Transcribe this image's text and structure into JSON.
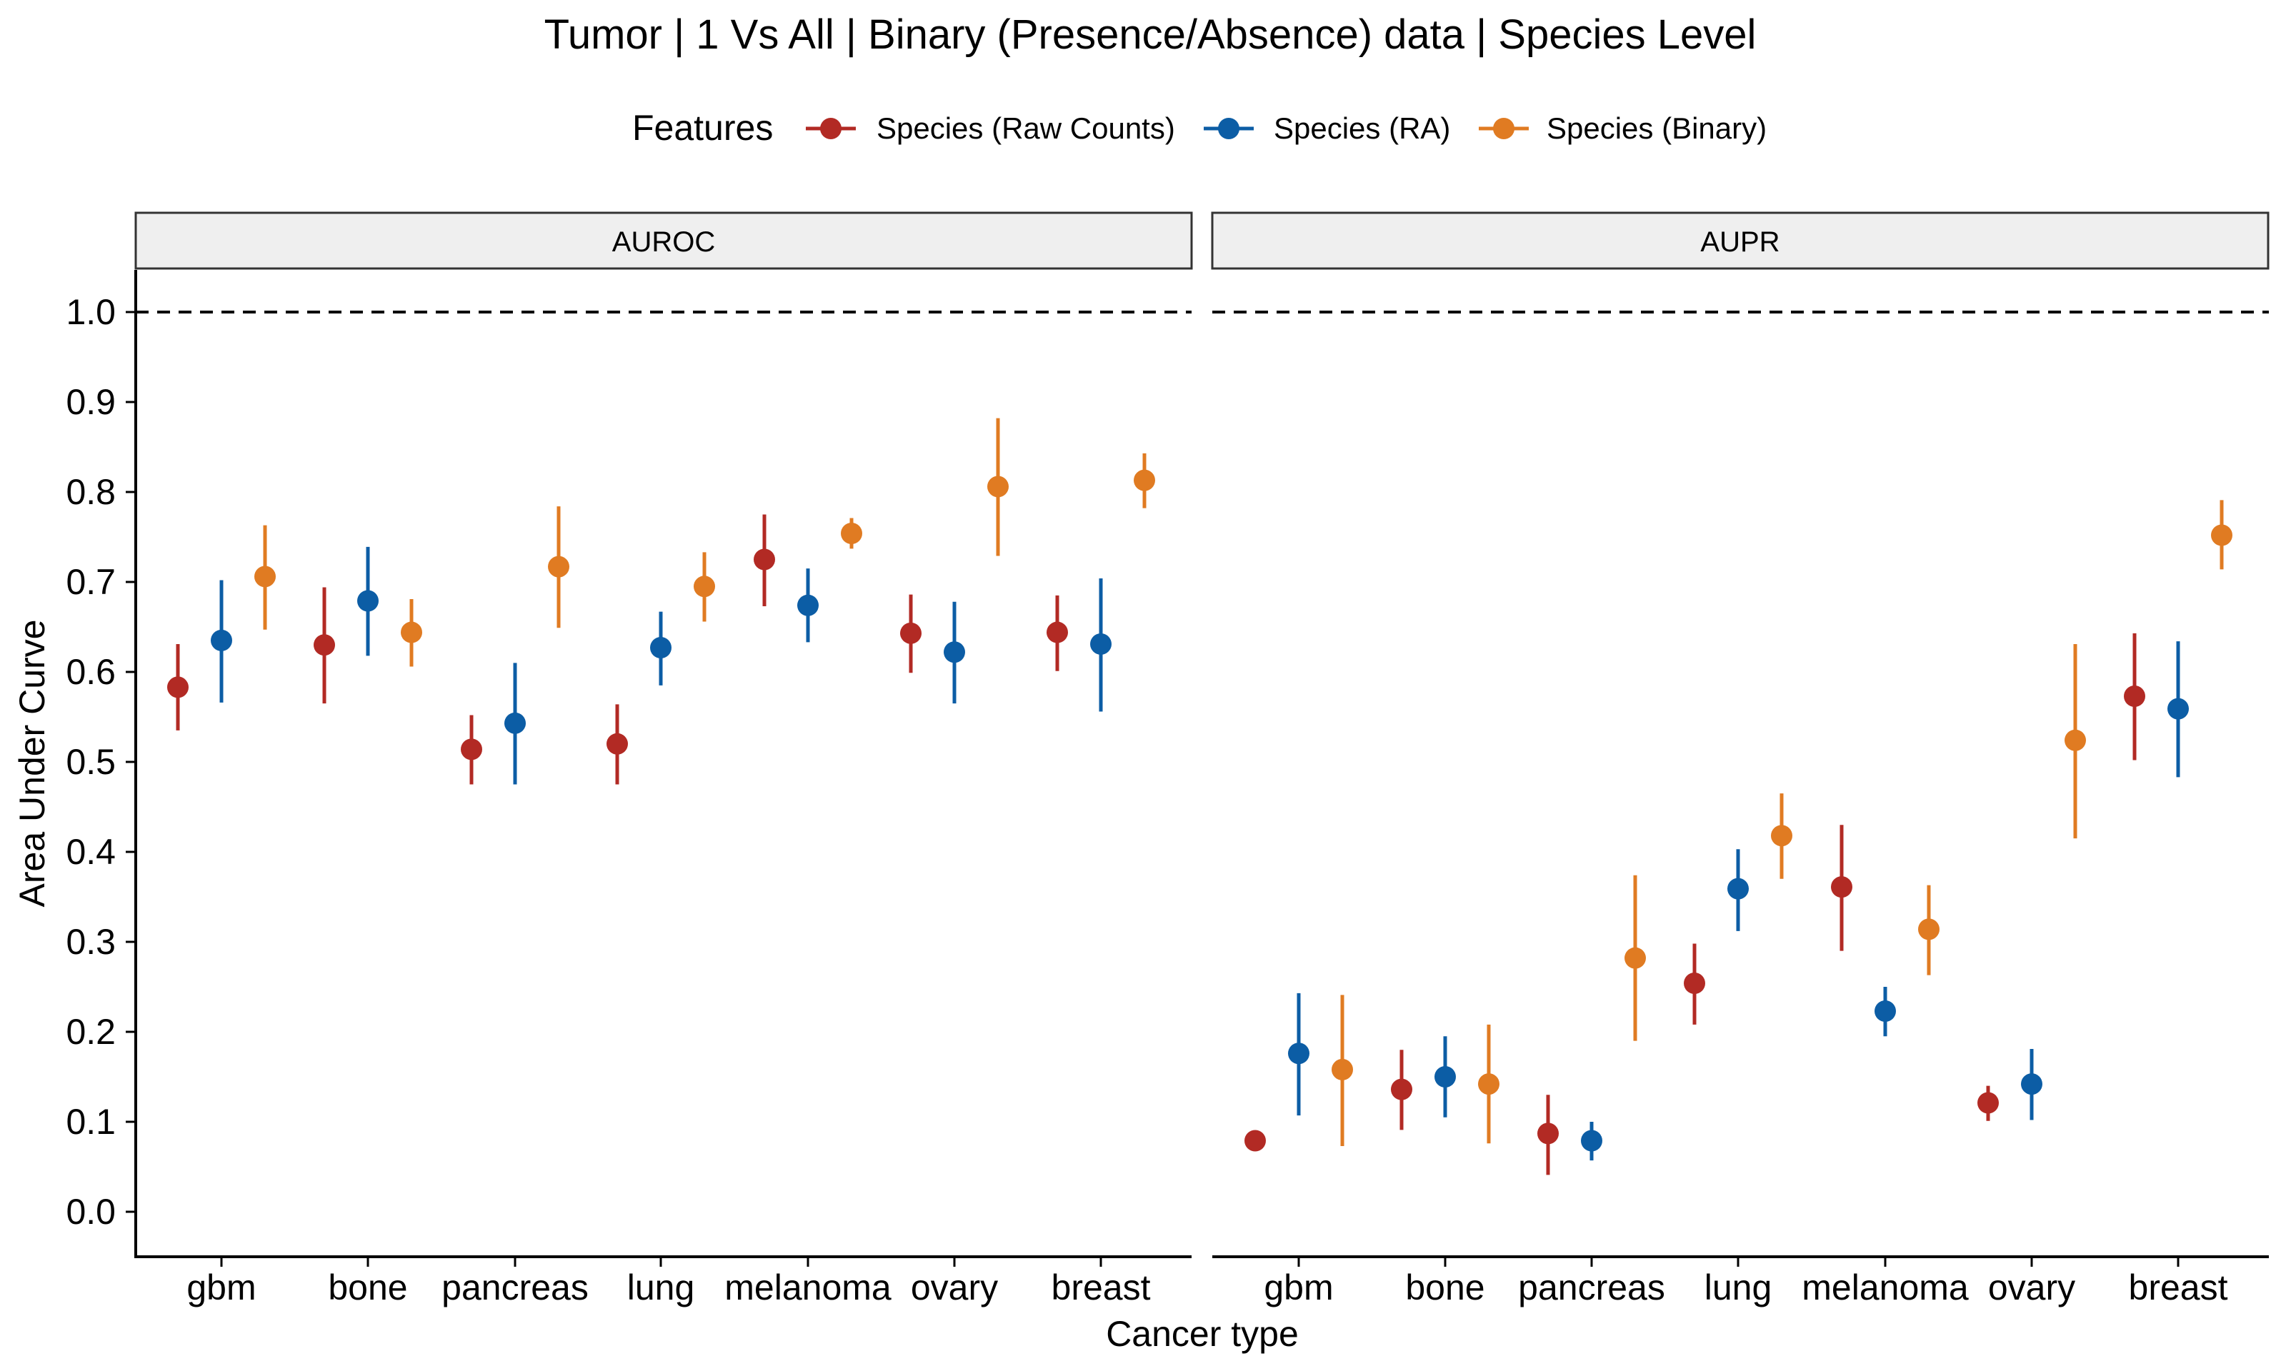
{
  "title": "Tumor | 1 Vs All | Binary (Presence/Absence) data | Species Level",
  "legend": {
    "title": "Features",
    "entries": [
      "Species (Raw Counts)",
      "Species (RA)",
      "Species (Binary)"
    ]
  },
  "chart_data": {
    "type": "scatter",
    "title": "Tumor | 1 Vs All | Binary (Presence/Absence) data | Species Level",
    "xlabel": "Cancer type",
    "ylabel": "Area Under Curve",
    "ylim": [
      -0.05,
      1.05
    ],
    "yticks": [
      "0.0",
      "0.1",
      "0.2",
      "0.3",
      "0.4",
      "0.5",
      "0.6",
      "0.7",
      "0.8",
      "0.9",
      "1.0"
    ],
    "reference_line": 1.0,
    "legend_position": "top",
    "grid": false,
    "categories": [
      "gbm",
      "bone",
      "pancreas",
      "lung",
      "melanoma",
      "ovary",
      "breast"
    ],
    "series_names": [
      "Species (Raw Counts)",
      "Species (RA)",
      "Species (Binary)"
    ],
    "colors": [
      "#B22A24",
      "#0C5DA5",
      "#E07B22"
    ],
    "panels": [
      {
        "label": "AUROC",
        "points": [
          {
            "cat": "gbm",
            "series": 0,
            "y": 0.583,
            "lo": 0.535,
            "hi": 0.631
          },
          {
            "cat": "gbm",
            "series": 1,
            "y": 0.635,
            "lo": 0.566,
            "hi": 0.702
          },
          {
            "cat": "gbm",
            "series": 2,
            "y": 0.706,
            "lo": 0.647,
            "hi": 0.763
          },
          {
            "cat": "bone",
            "series": 0,
            "y": 0.63,
            "lo": 0.565,
            "hi": 0.694
          },
          {
            "cat": "bone",
            "series": 1,
            "y": 0.679,
            "lo": 0.618,
            "hi": 0.739
          },
          {
            "cat": "bone",
            "series": 2,
            "y": 0.644,
            "lo": 0.606,
            "hi": 0.681
          },
          {
            "cat": "pancreas",
            "series": 0,
            "y": 0.514,
            "lo": 0.475,
            "hi": 0.552
          },
          {
            "cat": "pancreas",
            "series": 1,
            "y": 0.543,
            "lo": 0.475,
            "hi": 0.61
          },
          {
            "cat": "pancreas",
            "series": 2,
            "y": 0.717,
            "lo": 0.649,
            "hi": 0.784
          },
          {
            "cat": "lung",
            "series": 0,
            "y": 0.52,
            "lo": 0.475,
            "hi": 0.564
          },
          {
            "cat": "lung",
            "series": 1,
            "y": 0.627,
            "lo": 0.585,
            "hi": 0.667
          },
          {
            "cat": "lung",
            "series": 2,
            "y": 0.695,
            "lo": 0.656,
            "hi": 0.733
          },
          {
            "cat": "melanoma",
            "series": 0,
            "y": 0.725,
            "lo": 0.673,
            "hi": 0.775
          },
          {
            "cat": "melanoma",
            "series": 1,
            "y": 0.674,
            "lo": 0.633,
            "hi": 0.715
          },
          {
            "cat": "melanoma",
            "series": 2,
            "y": 0.754,
            "lo": 0.737,
            "hi": 0.771
          },
          {
            "cat": "ovary",
            "series": 0,
            "y": 0.643,
            "lo": 0.599,
            "hi": 0.686
          },
          {
            "cat": "ovary",
            "series": 1,
            "y": 0.622,
            "lo": 0.565,
            "hi": 0.678
          },
          {
            "cat": "ovary",
            "series": 2,
            "y": 0.806,
            "lo": 0.729,
            "hi": 0.882
          },
          {
            "cat": "breast",
            "series": 0,
            "y": 0.644,
            "lo": 0.601,
            "hi": 0.685
          },
          {
            "cat": "breast",
            "series": 1,
            "y": 0.631,
            "lo": 0.556,
            "hi": 0.704
          },
          {
            "cat": "breast",
            "series": 2,
            "y": 0.813,
            "lo": 0.782,
            "hi": 0.843
          }
        ]
      },
      {
        "label": "AUPR",
        "points": [
          {
            "cat": "gbm",
            "series": 0,
            "y": 0.079,
            "lo": 0.079,
            "hi": 0.079
          },
          {
            "cat": "gbm",
            "series": 1,
            "y": 0.176,
            "lo": 0.107,
            "hi": 0.243
          },
          {
            "cat": "gbm",
            "series": 2,
            "y": 0.158,
            "lo": 0.073,
            "hi": 0.241
          },
          {
            "cat": "bone",
            "series": 0,
            "y": 0.136,
            "lo": 0.091,
            "hi": 0.18
          },
          {
            "cat": "bone",
            "series": 1,
            "y": 0.15,
            "lo": 0.105,
            "hi": 0.195
          },
          {
            "cat": "bone",
            "series": 2,
            "y": 0.142,
            "lo": 0.076,
            "hi": 0.208
          },
          {
            "cat": "pancreas",
            "series": 0,
            "y": 0.087,
            "lo": 0.041,
            "hi": 0.13
          },
          {
            "cat": "pancreas",
            "series": 1,
            "y": 0.079,
            "lo": 0.057,
            "hi": 0.1
          },
          {
            "cat": "pancreas",
            "series": 2,
            "y": 0.282,
            "lo": 0.19,
            "hi": 0.374
          },
          {
            "cat": "lung",
            "series": 0,
            "y": 0.254,
            "lo": 0.208,
            "hi": 0.298
          },
          {
            "cat": "lung",
            "series": 1,
            "y": 0.359,
            "lo": 0.312,
            "hi": 0.403
          },
          {
            "cat": "lung",
            "series": 2,
            "y": 0.418,
            "lo": 0.37,
            "hi": 0.465
          },
          {
            "cat": "melanoma",
            "series": 0,
            "y": 0.361,
            "lo": 0.29,
            "hi": 0.43
          },
          {
            "cat": "melanoma",
            "series": 1,
            "y": 0.223,
            "lo": 0.195,
            "hi": 0.25
          },
          {
            "cat": "melanoma",
            "series": 2,
            "y": 0.314,
            "lo": 0.263,
            "hi": 0.363
          },
          {
            "cat": "ovary",
            "series": 0,
            "y": 0.121,
            "lo": 0.101,
            "hi": 0.14
          },
          {
            "cat": "ovary",
            "series": 1,
            "y": 0.142,
            "lo": 0.102,
            "hi": 0.181
          },
          {
            "cat": "ovary",
            "series": 2,
            "y": 0.524,
            "lo": 0.415,
            "hi": 0.631
          },
          {
            "cat": "breast",
            "series": 0,
            "y": 0.573,
            "lo": 0.502,
            "hi": 0.643
          },
          {
            "cat": "breast",
            "series": 1,
            "y": 0.559,
            "lo": 0.483,
            "hi": 0.634
          },
          {
            "cat": "breast",
            "series": 2,
            "y": 0.752,
            "lo": 0.714,
            "hi": 0.791
          }
        ]
      }
    ]
  }
}
